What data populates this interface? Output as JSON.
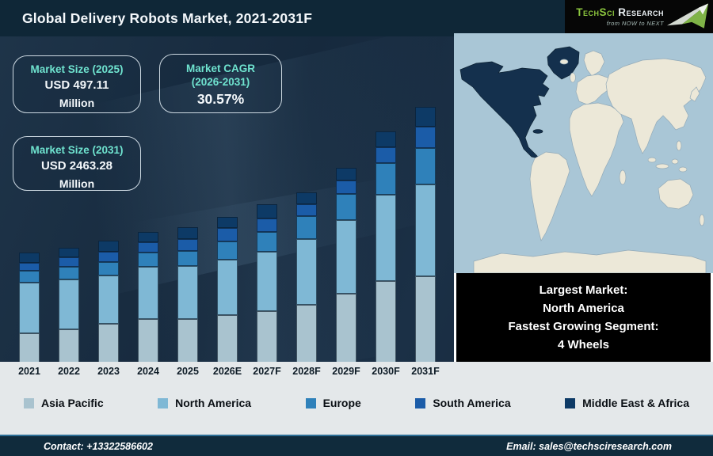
{
  "title_bar": {
    "title": "Global Delivery Robots Market, 2021-2031F"
  },
  "logo": {
    "brand_primary": "TechSci",
    "brand_secondary": "Research",
    "tagline": "from NOW to NEXT"
  },
  "info_boxes": {
    "market_size_2025": {
      "label": "Market Size (2025)",
      "value": "USD 497.11",
      "unit": "Million"
    },
    "market_cagr": {
      "label_line1": "Market CAGR",
      "label_line2": "(2026-2031)",
      "value": "30.57%"
    },
    "market_size_2031": {
      "label": "Market Size (2031)",
      "value": "USD 2463.28",
      "unit": "Million"
    }
  },
  "chart_data": {
    "type": "bar",
    "stacked": true,
    "title": "Global Delivery Robots Market, 2021-2031F",
    "xlabel": "",
    "ylabel": "",
    "grid": false,
    "legend_position": "bottom",
    "value_note": "No numeric value axis shown; values are relative stacked-segment heights (px) read from the figure",
    "categories": [
      "2021",
      "2022",
      "2023",
      "2024",
      "2025",
      "2026E",
      "2027F",
      "2028F",
      "2029F",
      "2030F",
      "2031F"
    ],
    "series": [
      {
        "name": "Asia Pacific",
        "color": "#a9c3cf",
        "values": [
          37,
          42,
          49,
          55,
          55,
          60,
          65,
          73,
          87,
          103,
          109
        ]
      },
      {
        "name": "North America",
        "color": "#7fb8d5",
        "values": [
          64,
          63,
          61,
          66,
          67,
          70,
          75,
          83,
          93,
          109,
          116
        ]
      },
      {
        "name": "Europe",
        "color": "#2f81ba",
        "values": [
          15,
          16,
          17,
          18,
          19,
          23,
          25,
          29,
          33,
          40,
          46
        ]
      },
      {
        "name": "South America",
        "color": "#1b5ca8",
        "values": [
          10,
          12,
          13,
          13,
          15,
          17,
          17,
          15,
          17,
          20,
          27
        ]
      },
      {
        "name": "Middle East & Africa",
        "color": "#0d3a66",
        "values": [
          13,
          12,
          14,
          13,
          15,
          14,
          18,
          15,
          16,
          20,
          25
        ]
      }
    ]
  },
  "map": {
    "highlighted_region": "North America",
    "ocean_color": "#a9c6d6",
    "land_color": "#ece8d8",
    "highlight_color": "#14304d"
  },
  "callout": {
    "lines": [
      "Largest Market:",
      "North America",
      "Fastest Growing Segment:",
      "4 Wheels"
    ]
  },
  "footer": {
    "contact": "Contact: +13322586602",
    "email": "Email: sales@techsciresearch.com"
  }
}
